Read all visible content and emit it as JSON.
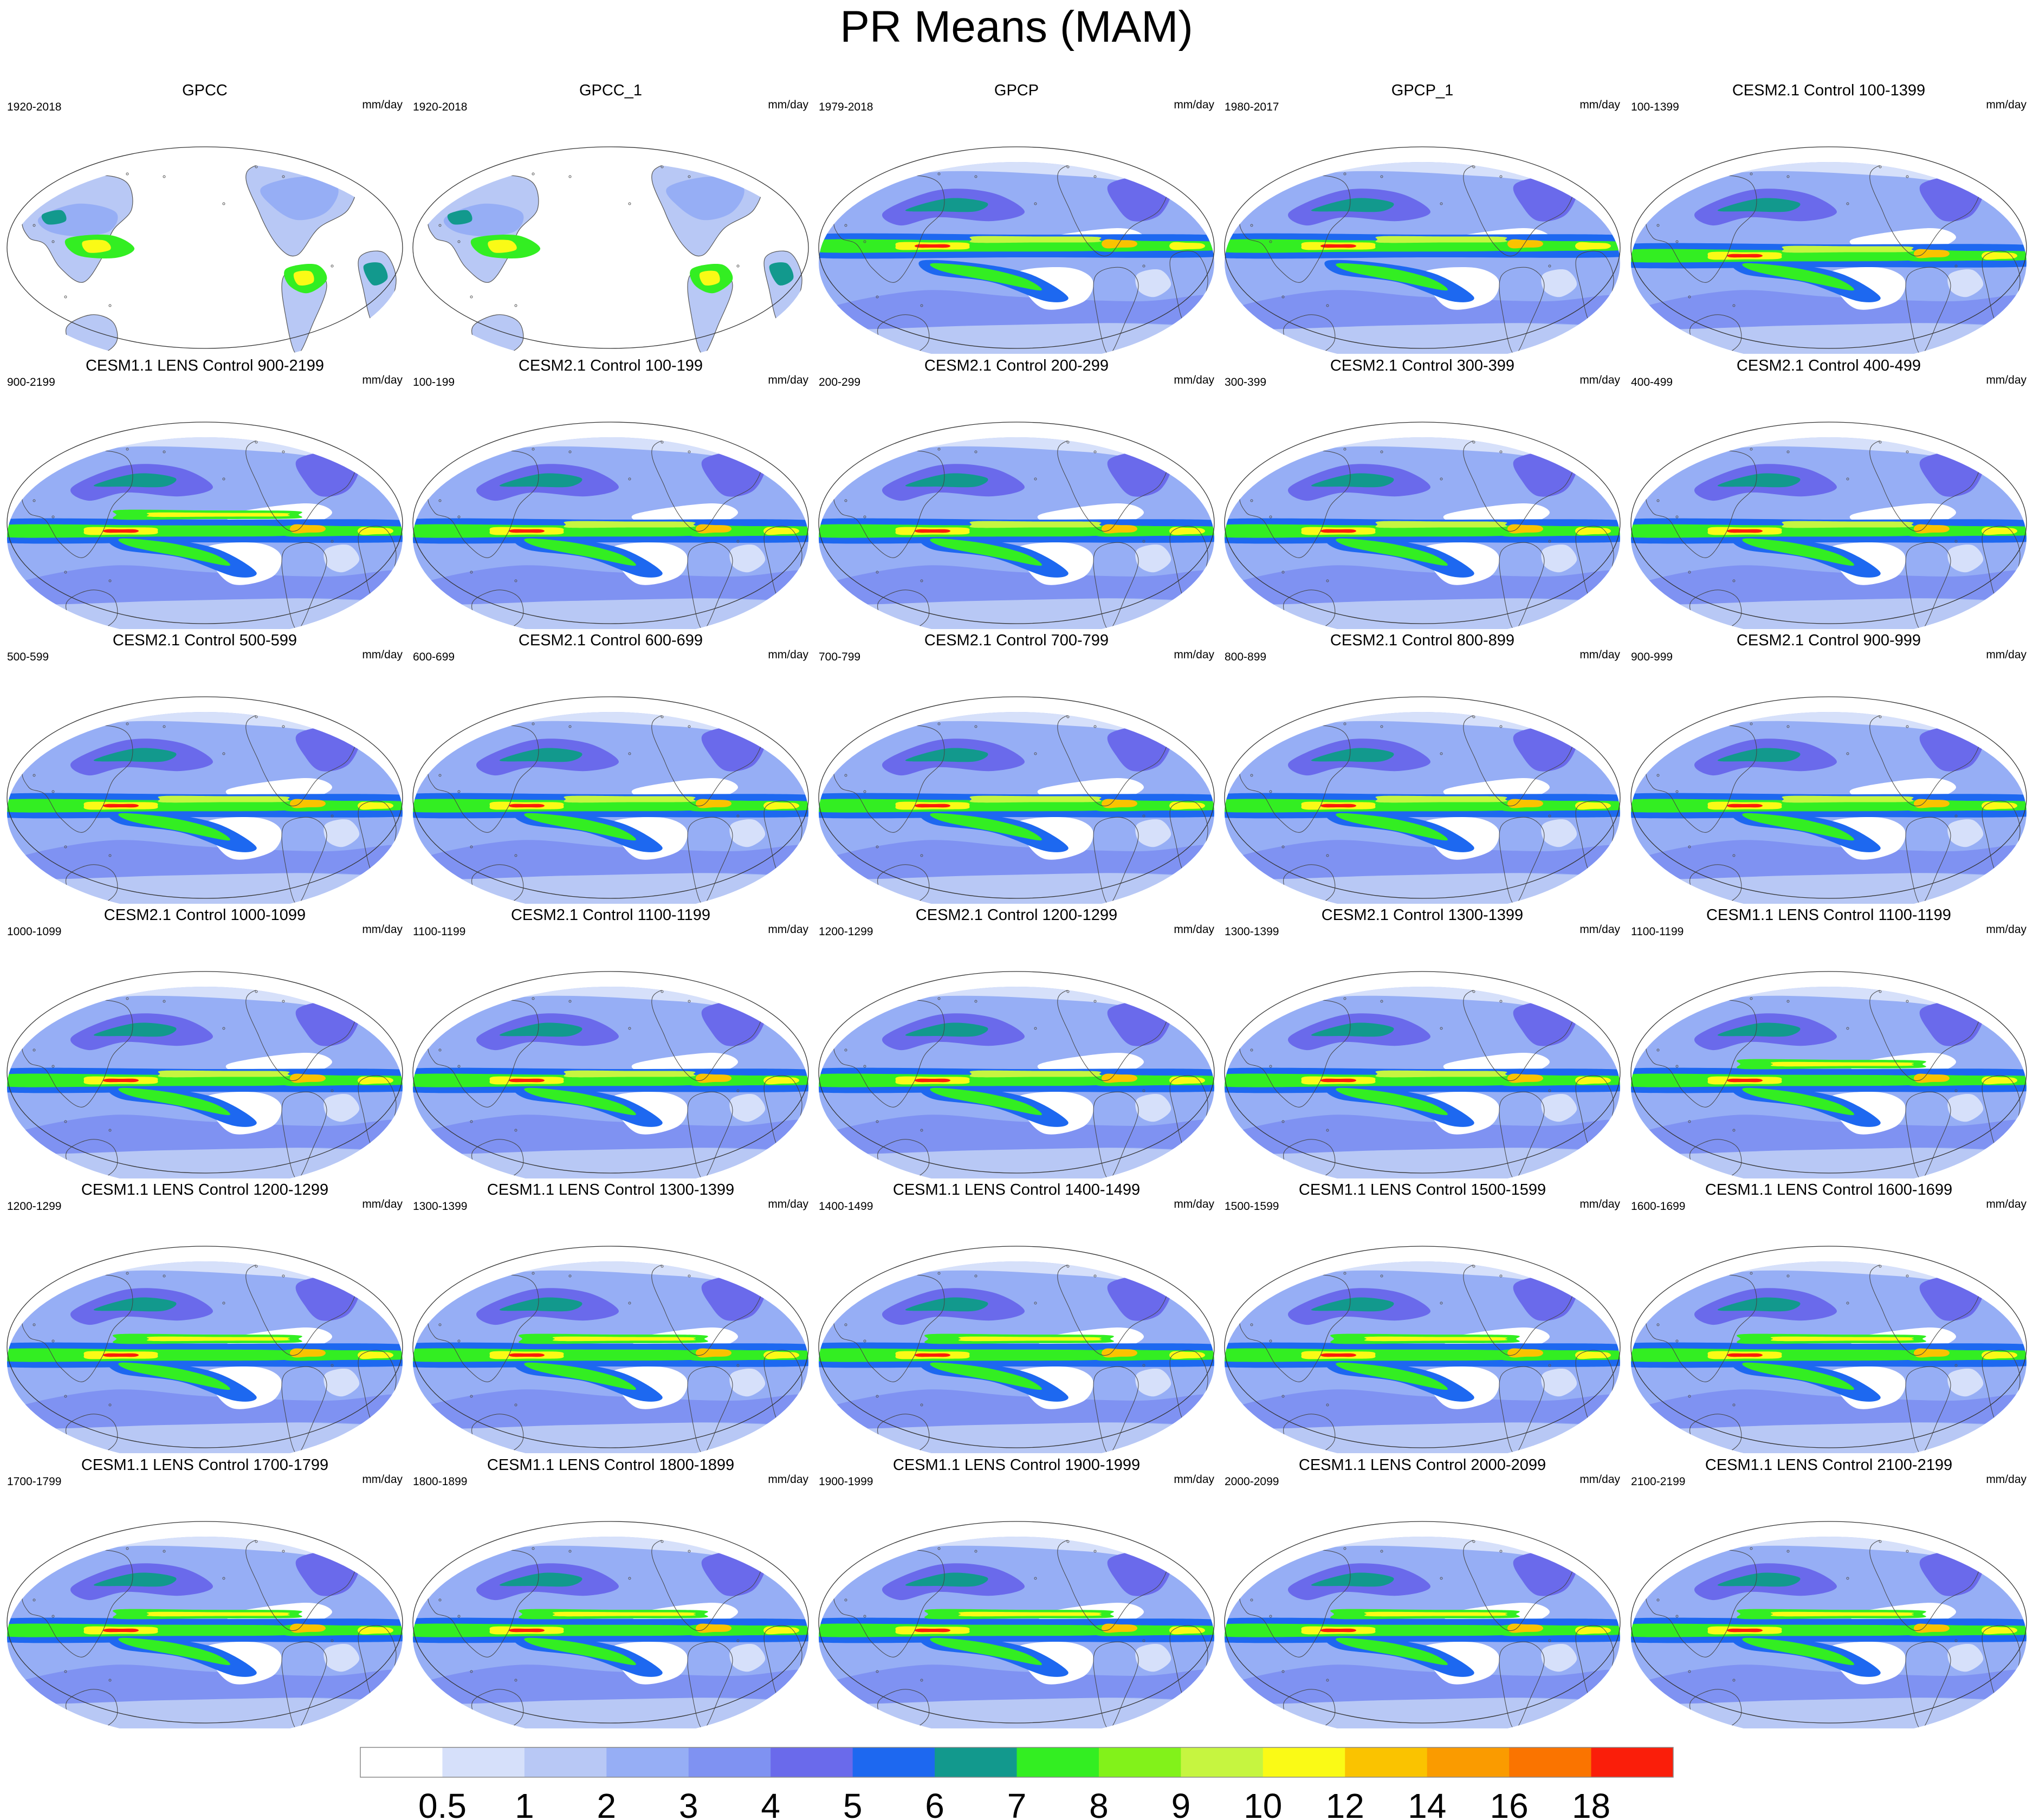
{
  "title": "PR Means (MAM)",
  "chart_data": {
    "type": "heatmap",
    "title": "PR Means (MAM)",
    "variable": "PR",
    "season": "MAM",
    "projection": "Robinson (Pacific-centered)",
    "units": "mm/day",
    "colorbar": {
      "boundaries": [
        "0.5",
        "1",
        "2",
        "3",
        "4",
        "5",
        "6",
        "7",
        "8",
        "9",
        "10",
        "12",
        "14",
        "16",
        "18"
      ],
      "colors": [
        "#ffffff",
        "#d6e0fa",
        "#b8c8f5",
        "#96aef5",
        "#7f92f2",
        "#6a6aeb",
        "#1d68f0",
        "#12998d",
        "#33ee22",
        "#82f21a",
        "#c6f540",
        "#fafa16",
        "#fac300",
        "#fa9b00",
        "#fa7400",
        "#fa1e0a"
      ]
    },
    "panels": [
      {
        "title": "GPCC",
        "left": "1920-2018",
        "right": "mm/day",
        "kind": "land"
      },
      {
        "title": "GPCC_1",
        "left": "1920-2018",
        "right": "mm/day",
        "kind": "land"
      },
      {
        "title": "GPCP",
        "left": "1979-2018",
        "right": "mm/day",
        "kind": "obs"
      },
      {
        "title": "GPCP_1",
        "left": "1980-2017",
        "right": "mm/day",
        "kind": "obs"
      },
      {
        "title": "CESM2.1 Control 100-1399",
        "left": "100-1399",
        "right": "mm/day",
        "kind": "cesm2"
      },
      {
        "title": "CESM1.1 LENS Control 900-2199",
        "left": "900-2199",
        "right": "mm/day",
        "kind": "cesm1"
      },
      {
        "title": "CESM2.1 Control 100-199",
        "left": "100-199",
        "right": "mm/day",
        "kind": "cesm2"
      },
      {
        "title": "CESM2.1 Control 200-299",
        "left": "200-299",
        "right": "mm/day",
        "kind": "cesm2"
      },
      {
        "title": "CESM2.1 Control 300-399",
        "left": "300-399",
        "right": "mm/day",
        "kind": "cesm2"
      },
      {
        "title": "CESM2.1 Control 400-499",
        "left": "400-499",
        "right": "mm/day",
        "kind": "cesm2"
      },
      {
        "title": "CESM2.1 Control 500-599",
        "left": "500-599",
        "right": "mm/day",
        "kind": "cesm2"
      },
      {
        "title": "CESM2.1 Control 600-699",
        "left": "600-699",
        "right": "mm/day",
        "kind": "cesm2"
      },
      {
        "title": "CESM2.1 Control 700-799",
        "left": "700-799",
        "right": "mm/day",
        "kind": "cesm2"
      },
      {
        "title": "CESM2.1 Control 800-899",
        "left": "800-899",
        "right": "mm/day",
        "kind": "cesm2"
      },
      {
        "title": "CESM2.1 Control 900-999",
        "left": "900-999",
        "right": "mm/day",
        "kind": "cesm2"
      },
      {
        "title": "CESM2.1 Control 1000-1099",
        "left": "1000-1099",
        "right": "mm/day",
        "kind": "cesm2"
      },
      {
        "title": "CESM2.1 Control 1100-1199",
        "left": "1100-1199",
        "right": "mm/day",
        "kind": "cesm2"
      },
      {
        "title": "CESM2.1 Control 1200-1299",
        "left": "1200-1299",
        "right": "mm/day",
        "kind": "cesm2"
      },
      {
        "title": "CESM2.1 Control 1300-1399",
        "left": "1300-1399",
        "right": "mm/day",
        "kind": "cesm2"
      },
      {
        "title": "CESM1.1 LENS Control 1100-1199",
        "left": "1100-1199",
        "right": "mm/day",
        "kind": "cesm1"
      },
      {
        "title": "CESM1.1 LENS Control 1200-1299",
        "left": "1200-1299",
        "right": "mm/day",
        "kind": "cesm1"
      },
      {
        "title": "CESM1.1 LENS Control 1300-1399",
        "left": "1300-1399",
        "right": "mm/day",
        "kind": "cesm1"
      },
      {
        "title": "CESM1.1 LENS Control 1400-1499",
        "left": "1400-1499",
        "right": "mm/day",
        "kind": "cesm1"
      },
      {
        "title": "CESM1.1 LENS Control 1500-1599",
        "left": "1500-1599",
        "right": "mm/day",
        "kind": "cesm1"
      },
      {
        "title": "CESM1.1 LENS Control 1600-1699",
        "left": "1600-1699",
        "right": "mm/day",
        "kind": "cesm1"
      },
      {
        "title": "CESM1.1 LENS Control 1700-1799",
        "left": "1700-1799",
        "right": "mm/day",
        "kind": "cesm1"
      },
      {
        "title": "CESM1.1 LENS Control 1800-1899",
        "left": "1800-1899",
        "right": "mm/day",
        "kind": "cesm1"
      },
      {
        "title": "CESM1.1 LENS Control 1900-1999",
        "left": "1900-1999",
        "right": "mm/day",
        "kind": "cesm1"
      },
      {
        "title": "CESM1.1 LENS Control 2000-2099",
        "left": "2000-2099",
        "right": "mm/day",
        "kind": "cesm1"
      },
      {
        "title": "CESM1.1 LENS Control 2100-2199",
        "left": "2100-2199",
        "right": "mm/day",
        "kind": "cesm1"
      }
    ]
  }
}
